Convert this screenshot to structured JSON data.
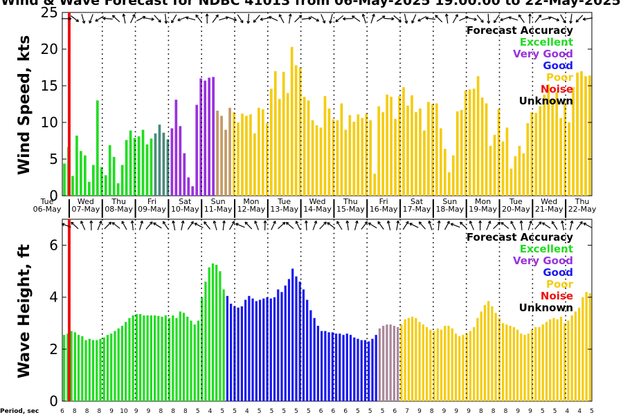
{
  "title": "Wind & Wave Forecast for NDBC 41013 from 06-May-2025 19:00:00 to 22-May-2025",
  "period_label": "Period, sec",
  "colors": {
    "Excellent": "#22dd22",
    "Very Good": "#9933dd",
    "Good": "#1a1aee",
    "Poor": "#f5cc11",
    "Noise": "#ee1111",
    "Unknown": "#000000",
    "blend_gp": "#4a8a7a",
    "blend_vp": "#aa8899",
    "blend_pv": "#c49a66"
  },
  "legend": {
    "title": "Forecast Accuracy",
    "items": [
      {
        "label": "Excellent",
        "color": "#22dd22"
      },
      {
        "label": "Very Good",
        "color": "#9933dd"
      },
      {
        "label": "Good",
        "color": "#1a1aee"
      },
      {
        "label": "Poor",
        "color": "#f5cc11"
      },
      {
        "label": "Noise",
        "color": "#ee1111"
      },
      {
        "label": "Unknown",
        "color": "#000000"
      }
    ]
  },
  "days": [
    {
      "day": "Tue",
      "date": "06-May"
    },
    {
      "day": "Wed",
      "date": "07-May"
    },
    {
      "day": "Thu",
      "date": "08-May"
    },
    {
      "day": "Fri",
      "date": "09-May"
    },
    {
      "day": "Sat",
      "date": "10-May"
    },
    {
      "day": "Sun",
      "date": "11-May"
    },
    {
      "day": "Mon",
      "date": "12-May"
    },
    {
      "day": "Tue",
      "date": "13-May"
    },
    {
      "day": "Wed",
      "date": "14-May"
    },
    {
      "day": "Thu",
      "date": "15-May"
    },
    {
      "day": "Fri",
      "date": "16-May"
    },
    {
      "day": "Sat",
      "date": "17-May"
    },
    {
      "day": "Sun",
      "date": "18-May"
    },
    {
      "day": "Mon",
      "date": "19-May"
    },
    {
      "day": "Tue",
      "date": "20-May"
    },
    {
      "day": "Wed",
      "date": "21-May"
    },
    {
      "day": "Thu",
      "date": "22-May"
    }
  ],
  "periods": [
    "6",
    "8",
    "8",
    "8",
    "9",
    "10",
    "9",
    "9",
    "8",
    "8",
    "8",
    "5",
    "4",
    "5",
    "5",
    "4",
    "5",
    "5",
    "5",
    "5",
    "5",
    "6",
    "6",
    "6",
    "5",
    "5",
    "5",
    "6",
    "7",
    "9",
    "8",
    "9",
    "9",
    "9",
    "8",
    "8",
    "8",
    "9",
    "9",
    "5",
    "5",
    "4",
    "4",
    "5"
  ],
  "chart_data": [
    {
      "type": "bar",
      "name": "wind-chart",
      "ylabel": "Wind Speed, kts",
      "ylim": [
        0,
        25
      ],
      "yticks": [
        0,
        5,
        10,
        15,
        20,
        25
      ],
      "x_unit": "hours since 06-May 19:00",
      "x_range": [
        0,
        384
      ],
      "noise_marker_x": 5,
      "day_boundaries_x": [
        5,
        29,
        53,
        77,
        101,
        125,
        149,
        173,
        197,
        221,
        245,
        269,
        293,
        317,
        341,
        365
      ],
      "segments": [
        {
          "quality": "Excellent",
          "values": [
            4.4,
            6.6,
            2.7,
            8.2,
            6.1,
            5.5,
            1.9,
            4.2,
            13.0,
            3.9,
            2.8,
            6.9,
            5.3,
            1.7,
            4.2,
            7.6,
            8.9,
            7.9,
            8.1,
            9.0,
            7.0,
            7.8
          ]
        },
        {
          "quality": "blend_gp",
          "values": [
            8.5,
            9.7,
            8.6,
            7.7
          ]
        },
        {
          "quality": "Very Good",
          "values": [
            9.2,
            13.1,
            9.5,
            5.8,
            2.5,
            1.3,
            12.4,
            16.0,
            15.7,
            16.1,
            16.2
          ]
        },
        {
          "quality": "blend_pv",
          "values": [
            11.6,
            10.9,
            9.0,
            12.0
          ]
        },
        {
          "quality": "Poor",
          "values": [
            11.4,
            10.0,
            11.2,
            10.9,
            11.1,
            8.5,
            12.0,
            11.8,
            9.9,
            14.6,
            17.0,
            13.2,
            16.9,
            14.0,
            20.3,
            17.8,
            17.5,
            13.5,
            13.0,
            10.3,
            9.6,
            9.3,
            13.6,
            11.9,
            10.4,
            10.3,
            12.6,
            9.0,
            11.0,
            10.1,
            11.1,
            10.6,
            11.2,
            10.3,
            3.0,
            12.2,
            11.4,
            13.8,
            13.5,
            10.5,
            13.6,
            14.8,
            12.3,
            13.7,
            11.4,
            11.9,
            8.9,
            12.8,
            12.5,
            12.6,
            9.2,
            6.4,
            3.2,
            5.5,
            11.5,
            11.7,
            14.3,
            14.5,
            14.6,
            16.3,
            13.4,
            12.6,
            6.8,
            8.3,
            11.8,
            7.4,
            9.3,
            3.7,
            5.4,
            6.8,
            5.8,
            9.9,
            11.4,
            11.3,
            12.2,
            13.8,
            15.2,
            13.2,
            14.1,
            10.6,
            12.7,
            10.0,
            14.8,
            16.8,
            17.0,
            16.3,
            16.4
          ]
        }
      ]
    },
    {
      "type": "bar",
      "name": "wave-chart",
      "ylabel": "Wave Height, ft",
      "ylim": [
        0,
        7
      ],
      "yticks": [
        0,
        2,
        4,
        6
      ],
      "x_unit": "hours since 06-May 19:00",
      "x_range": [
        0,
        384
      ],
      "noise_marker_x": 5,
      "day_boundaries_x": [
        5,
        29,
        53,
        77,
        101,
        125,
        149,
        173,
        197,
        221,
        245,
        269,
        293,
        317,
        341,
        365
      ],
      "segments": [
        {
          "quality": "Excellent",
          "values": [
            2.55,
            2.6,
            2.7,
            2.65,
            2.55,
            2.5,
            2.35,
            2.4,
            2.35,
            2.35,
            2.4,
            2.45,
            2.55,
            2.6,
            2.7,
            2.8,
            2.9,
            3.05,
            3.2,
            3.3,
            3.35,
            3.35,
            3.3,
            3.3,
            3.3,
            3.3,
            3.28,
            3.25,
            3.3,
            3.2,
            3.3,
            3.2,
            3.45,
            3.4,
            3.25,
            3.1,
            2.95,
            3.1,
            4.0,
            4.6,
            5.15,
            5.3,
            5.25,
            5.0,
            4.3
          ]
        },
        {
          "quality": "Good",
          "values": [
            4.05,
            3.75,
            3.65,
            3.6,
            3.65,
            3.9,
            4.05,
            3.95,
            3.85,
            3.9,
            3.95,
            4.0,
            3.95,
            4.0,
            4.3,
            4.2,
            4.45,
            4.7,
            5.1,
            4.8,
            4.6,
            4.3,
            3.9,
            3.5,
            3.2,
            2.9,
            2.7,
            2.7,
            2.65,
            2.65,
            2.6,
            2.6,
            2.55,
            2.6,
            2.55,
            2.45,
            2.4,
            2.35,
            2.35,
            2.3,
            2.4,
            2.55
          ]
        },
        {
          "quality": "blend_vp",
          "values": [
            2.8,
            2.9,
            2.95,
            2.95,
            2.9,
            2.85
          ]
        },
        {
          "quality": "Poor",
          "values": [
            2.95,
            3.15,
            3.2,
            3.25,
            3.2,
            3.05,
            2.95,
            2.85,
            2.75,
            2.7,
            2.8,
            2.75,
            2.9,
            2.9,
            2.8,
            2.6,
            2.5,
            2.55,
            2.6,
            2.7,
            2.85,
            3.2,
            3.45,
            3.7,
            3.85,
            3.65,
            3.4,
            3.2,
            3.0,
            2.95,
            2.9,
            2.85,
            2.75,
            2.6,
            2.55,
            2.6,
            2.75,
            2.85,
            2.85,
            2.95,
            3.05,
            3.15,
            3.2,
            3.15,
            3.25,
            3.0,
            3.1,
            3.3,
            3.45,
            3.6,
            4.0,
            4.2,
            4.15
          ]
        }
      ]
    }
  ]
}
